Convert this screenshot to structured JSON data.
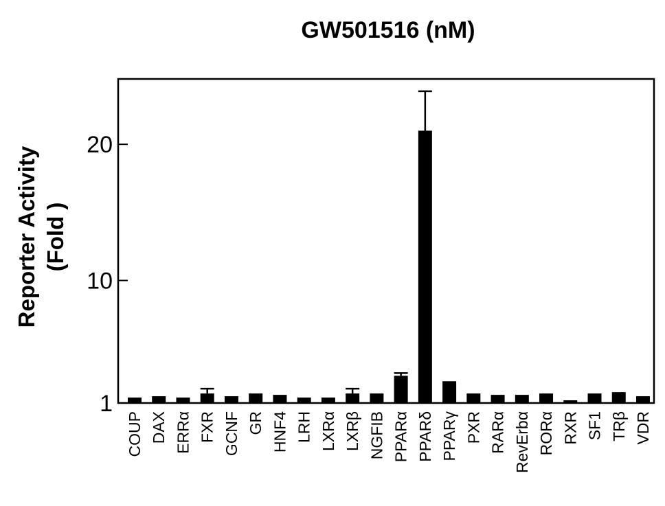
{
  "chart_data": {
    "type": "bar",
    "title": "GW501516 (nM)",
    "ylabel_line1": "Reporter Activity",
    "ylabel_line2": "(Fold )",
    "xlabel": "",
    "yticks": [
      1,
      10,
      20
    ],
    "ylim": [
      1,
      24.8
    ],
    "grid": false,
    "legend": "none",
    "categories": [
      "COUP",
      "DAX",
      "ERRα",
      "FXR",
      "GCNF",
      "GR",
      "HNF4",
      "LRH",
      "LXRα",
      "LXRβ",
      "NGFIB",
      "PPARα",
      "PPARδ",
      "PPARγ",
      "PXR",
      "RARα",
      "RevErbα",
      "RORα",
      "RXR",
      "SF1",
      "TRβ",
      "VDR"
    ],
    "values": [
      1.4,
      1.5,
      1.4,
      1.7,
      1.5,
      1.7,
      1.6,
      1.4,
      1.4,
      1.7,
      1.7,
      3.0,
      21.0,
      2.6,
      1.7,
      1.6,
      1.6,
      1.7,
      1.2,
      1.7,
      1.8,
      1.5
    ],
    "errors": [
      0,
      0,
      0,
      0.35,
      0,
      0,
      0,
      0,
      0,
      0.35,
      0,
      0.2,
      2.9,
      0,
      0,
      0,
      0,
      0,
      0,
      0,
      0,
      0
    ],
    "bar_color": "#000000"
  }
}
